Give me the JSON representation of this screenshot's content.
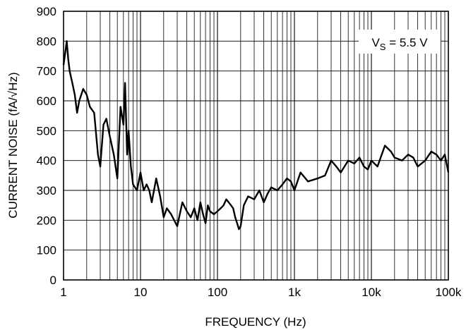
{
  "chart_data": {
    "type": "line",
    "title": "",
    "xlabel": "FREQUENCY (Hz)",
    "ylabel": "CURRENT NOISE (fA/√Hz)",
    "x_scale": "log",
    "xlim": [
      1,
      100000
    ],
    "ylim": [
      0,
      900
    ],
    "grid": true,
    "x_tick_labels": [
      "1",
      "10",
      "100",
      "1k",
      "10k",
      "100k"
    ],
    "y_ticks": [
      0,
      100,
      200,
      300,
      400,
      500,
      600,
      700,
      800,
      900
    ],
    "annotation": {
      "main": "V",
      "sub": "S",
      "rest": " = 5.5 V"
    },
    "line_color": "#000000",
    "series": [
      {
        "x": [
          1,
          1.05,
          1.1,
          1.15,
          1.2,
          1.3,
          1.4,
          1.5,
          1.6,
          1.8,
          2,
          2.2,
          2.5,
          2.8,
          3,
          3.3,
          3.6,
          4,
          4.5,
          5,
          5.5,
          6,
          6.3,
          6.7,
          7,
          7.5,
          8,
          9,
          10,
          11,
          12,
          13,
          14,
          16,
          18,
          20,
          22,
          25,
          30,
          35,
          40,
          45,
          50,
          55,
          60,
          65,
          70,
          75,
          80,
          90,
          100,
          110,
          120,
          130,
          140,
          150,
          160,
          170,
          180,
          190,
          200,
          220,
          250,
          300,
          350,
          400,
          450,
          500,
          600,
          700,
          800,
          900,
          1000,
          1200,
          1500,
          2000,
          2500,
          3000,
          3500,
          4000,
          5000,
          6000,
          7000,
          8000,
          9000,
          10000,
          12000,
          15000,
          18000,
          20000,
          25000,
          30000,
          35000,
          40000,
          50000,
          60000,
          70000,
          80000,
          90000,
          100000
        ],
        "values": [
          720,
          760,
          800,
          740,
          700,
          660,
          620,
          560,
          600,
          640,
          620,
          580,
          560,
          420,
          380,
          520,
          540,
          480,
          420,
          340,
          580,
          520,
          660,
          420,
          500,
          380,
          320,
          300,
          360,
          300,
          320,
          300,
          260,
          340,
          280,
          210,
          240,
          220,
          180,
          260,
          230,
          210,
          240,
          200,
          260,
          220,
          190,
          250,
          230,
          220,
          230,
          240,
          250,
          270,
          260,
          250,
          240,
          210,
          190,
          170,
          180,
          250,
          280,
          270,
          300,
          260,
          290,
          310,
          300,
          320,
          340,
          330,
          300,
          360,
          330,
          340,
          350,
          400,
          380,
          360,
          400,
          390,
          410,
          380,
          370,
          400,
          380,
          450,
          430,
          410,
          400,
          420,
          410,
          380,
          400,
          430,
          420,
          400,
          420,
          360
        ]
      }
    ]
  }
}
